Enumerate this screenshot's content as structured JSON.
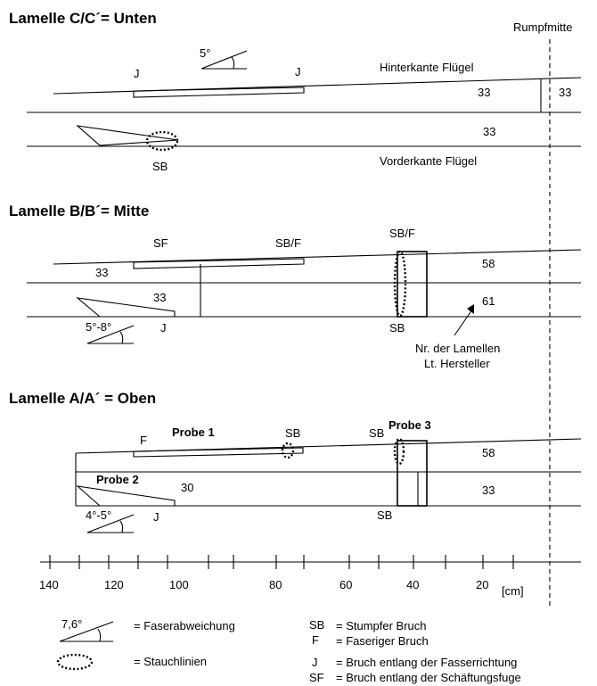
{
  "rumpfmitte": "Rumpfmitte",
  "section_c": {
    "title": "Lamelle C/C´= Unten",
    "angle": "5°",
    "j_left": "J",
    "j_right": "J",
    "hinterkante": "Hinterkante Flügel",
    "vorderkante": "Vorderkante Flügel",
    "num_top": "33",
    "num_right": "33",
    "num_bottom": "33",
    "sb": "SB"
  },
  "section_b": {
    "title": "Lamelle B/B´= Mitte",
    "sf": "SF",
    "sbf_left": "SB/F",
    "sbf_right": "SB/F",
    "num_left": "33",
    "num_wedge": "33",
    "num_58": "58",
    "num_61": "61",
    "angle": "5°-8°",
    "j": "J",
    "sb": "SB",
    "note_line1": "Nr. der Lamellen",
    "note_line2": "Lt. Hersteller"
  },
  "section_a": {
    "title": "Lamelle A/A´ = Oben",
    "probe1": "Probe 1",
    "probe2": "Probe 2",
    "probe3": "Probe 3",
    "f": "F",
    "sb_left": "SB",
    "sb_right": "SB",
    "sb_bottom": "SB",
    "num_30": "30",
    "num_58": "58",
    "num_33": "33",
    "angle": "4°-5°",
    "j": "J"
  },
  "scale": {
    "ticks": [
      "140",
      "120",
      "100",
      "80",
      "60",
      "40",
      "20"
    ],
    "unit": "[cm]"
  },
  "legend": {
    "angle": "7,6°",
    "faserabweichung": "= Faserabweichung",
    "stauchlinien": "= Stauchlinien",
    "sb_key": "SB",
    "sb_text": "= Stumpfer Bruch",
    "f_key": "F",
    "f_text": "= Faseriger Bruch",
    "j_key": "J",
    "j_text": "= Bruch entlang der Fasserrichtung",
    "sf_key": "SF",
    "sf_text": "= Bruch entlang der Schäftungsfuge"
  }
}
